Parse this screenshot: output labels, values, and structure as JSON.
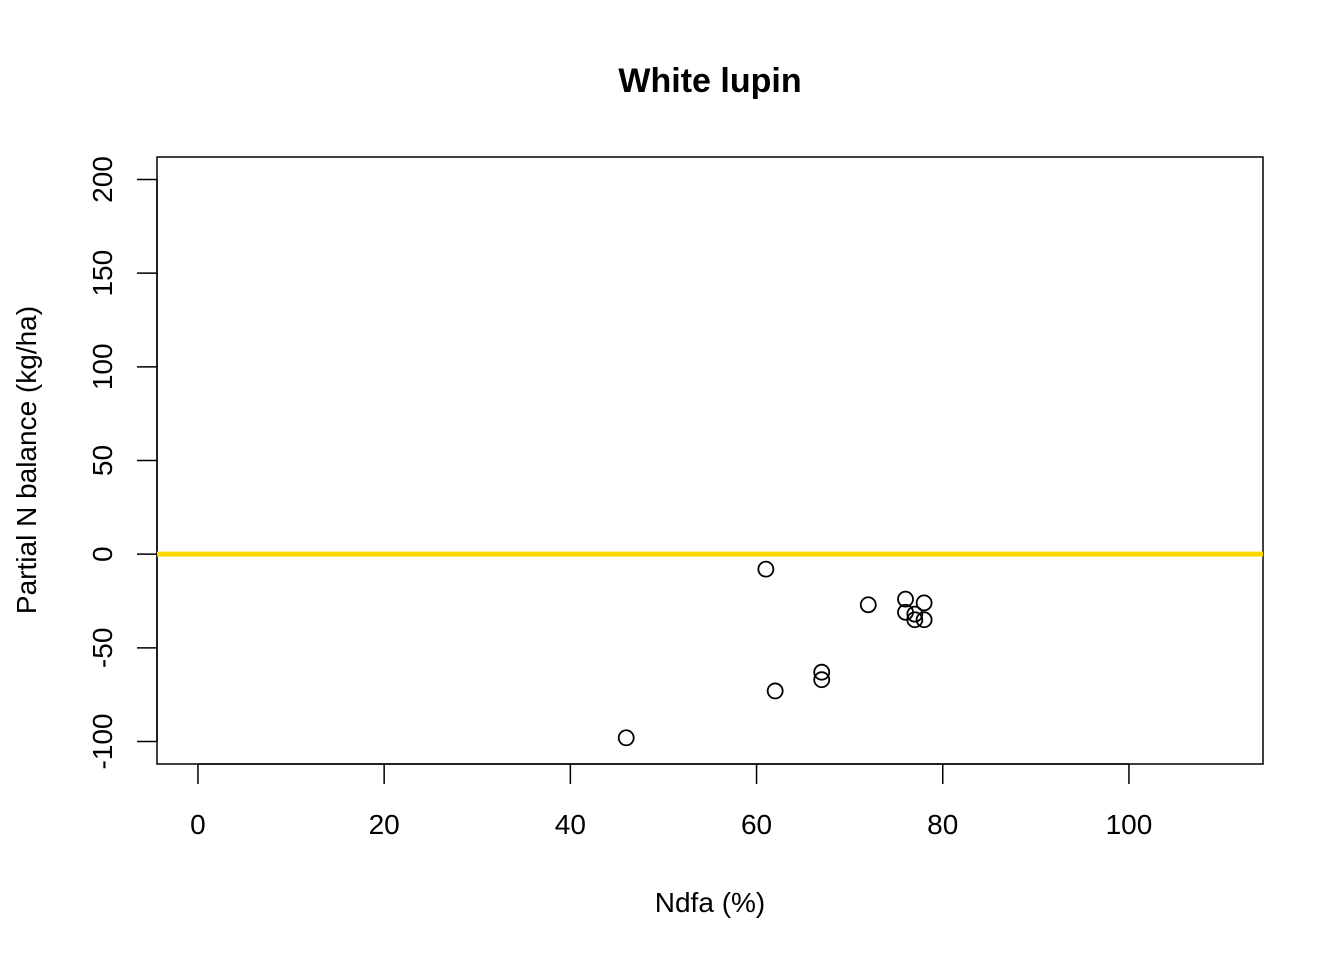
{
  "chart_data": {
    "type": "scatter",
    "title": "White lupin",
    "xlabel": "Ndfa (%)",
    "ylabel": "Partial N balance (kg/ha)",
    "xlim": [
      -4.4,
      114.4
    ],
    "ylim": [
      -112,
      212
    ],
    "xticks": [
      0,
      20,
      40,
      60,
      80,
      100
    ],
    "yticks": [
      -100,
      -50,
      0,
      50,
      100,
      150,
      200
    ],
    "grid": false,
    "points": [
      {
        "x": 61,
        "y": -8
      },
      {
        "x": 46,
        "y": -98
      },
      {
        "x": 62,
        "y": -73
      },
      {
        "x": 67,
        "y": -63
      },
      {
        "x": 67,
        "y": -67
      },
      {
        "x": 72,
        "y": -27
      },
      {
        "x": 76,
        "y": -24
      },
      {
        "x": 76,
        "y": -31
      },
      {
        "x": 77,
        "y": -32
      },
      {
        "x": 77,
        "y": -35
      },
      {
        "x": 78,
        "y": -26
      },
      {
        "x": 78,
        "y": -35
      }
    ],
    "reference_line": {
      "orientation": "horizontal",
      "y": 0,
      "color": "#FFD700"
    },
    "point_color": "#000000"
  }
}
